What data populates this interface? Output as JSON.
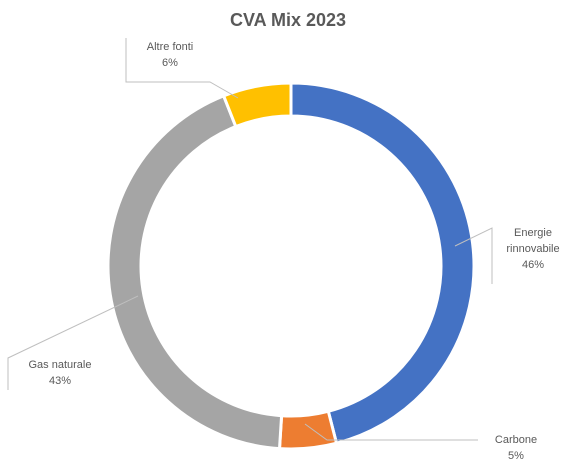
{
  "chart_data": {
    "type": "pie",
    "variant": "donut",
    "title": "CVA Mix 2023",
    "slices": [
      {
        "label_lines": [
          "Energie",
          "rinnovabile"
        ],
        "value": 46,
        "value_label": "46%",
        "color": "#4472C4"
      },
      {
        "label_lines": [
          "Carbone"
        ],
        "value": 5,
        "value_label": "5%",
        "color": "#ED7D31"
      },
      {
        "label_lines": [
          "Gas naturale"
        ],
        "value": 43,
        "value_label": "43%",
        "color": "#A5A5A5"
      },
      {
        "label_lines": [
          "Altre fonti"
        ],
        "value": 6,
        "value_label": "6%",
        "color": "#FFC000"
      }
    ],
    "legend": "none"
  }
}
